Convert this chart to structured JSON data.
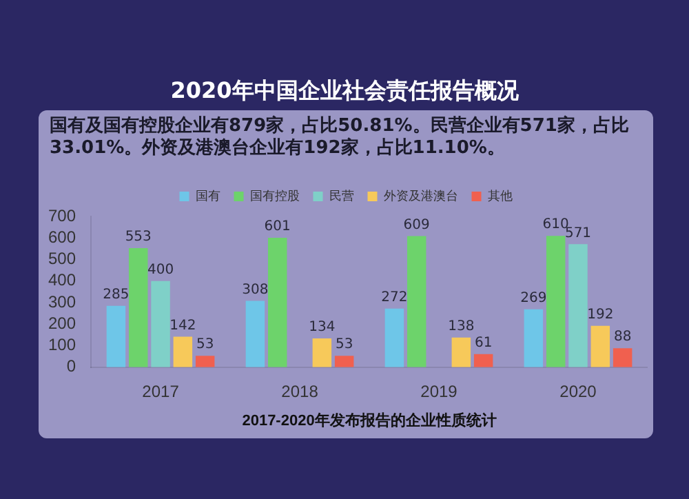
{
  "chart_data": {
    "type": "bar",
    "title": "2020年中国企业社会责任报告概况",
    "subtitle": "国有及国有控股企业有879家，占比50.81%。民营企业有571家，占比33.01%。外资及港澳台企业有192家，占比11.10%。",
    "xlabel": "2017-2020年发布报告的企业性质统计",
    "categories": [
      "2017",
      "2018",
      "2019",
      "2020"
    ],
    "series": [
      {
        "name": "国有",
        "color": "#6ec6e8",
        "values": [
          285,
          308,
          272,
          269
        ]
      },
      {
        "name": "国有控股",
        "color": "#6dd36b",
        "values": [
          553,
          601,
          609,
          610
        ]
      },
      {
        "name": "民营",
        "color": "#7fd0c8",
        "values": [
          400,
          null,
          null,
          571
        ]
      },
      {
        "name": "外资及港澳台",
        "color": "#f7c95a",
        "values": [
          142,
          134,
          138,
          192
        ]
      },
      {
        "name": "其他",
        "color": "#f0604f",
        "values": [
          53,
          53,
          61,
          88
        ]
      }
    ],
    "ylim": [
      0,
      700
    ],
    "yticks": [
      0,
      100,
      200,
      300,
      400,
      500,
      600,
      700
    ],
    "data_labels": true,
    "legend": "top",
    "grid": false,
    "relative": false
  }
}
